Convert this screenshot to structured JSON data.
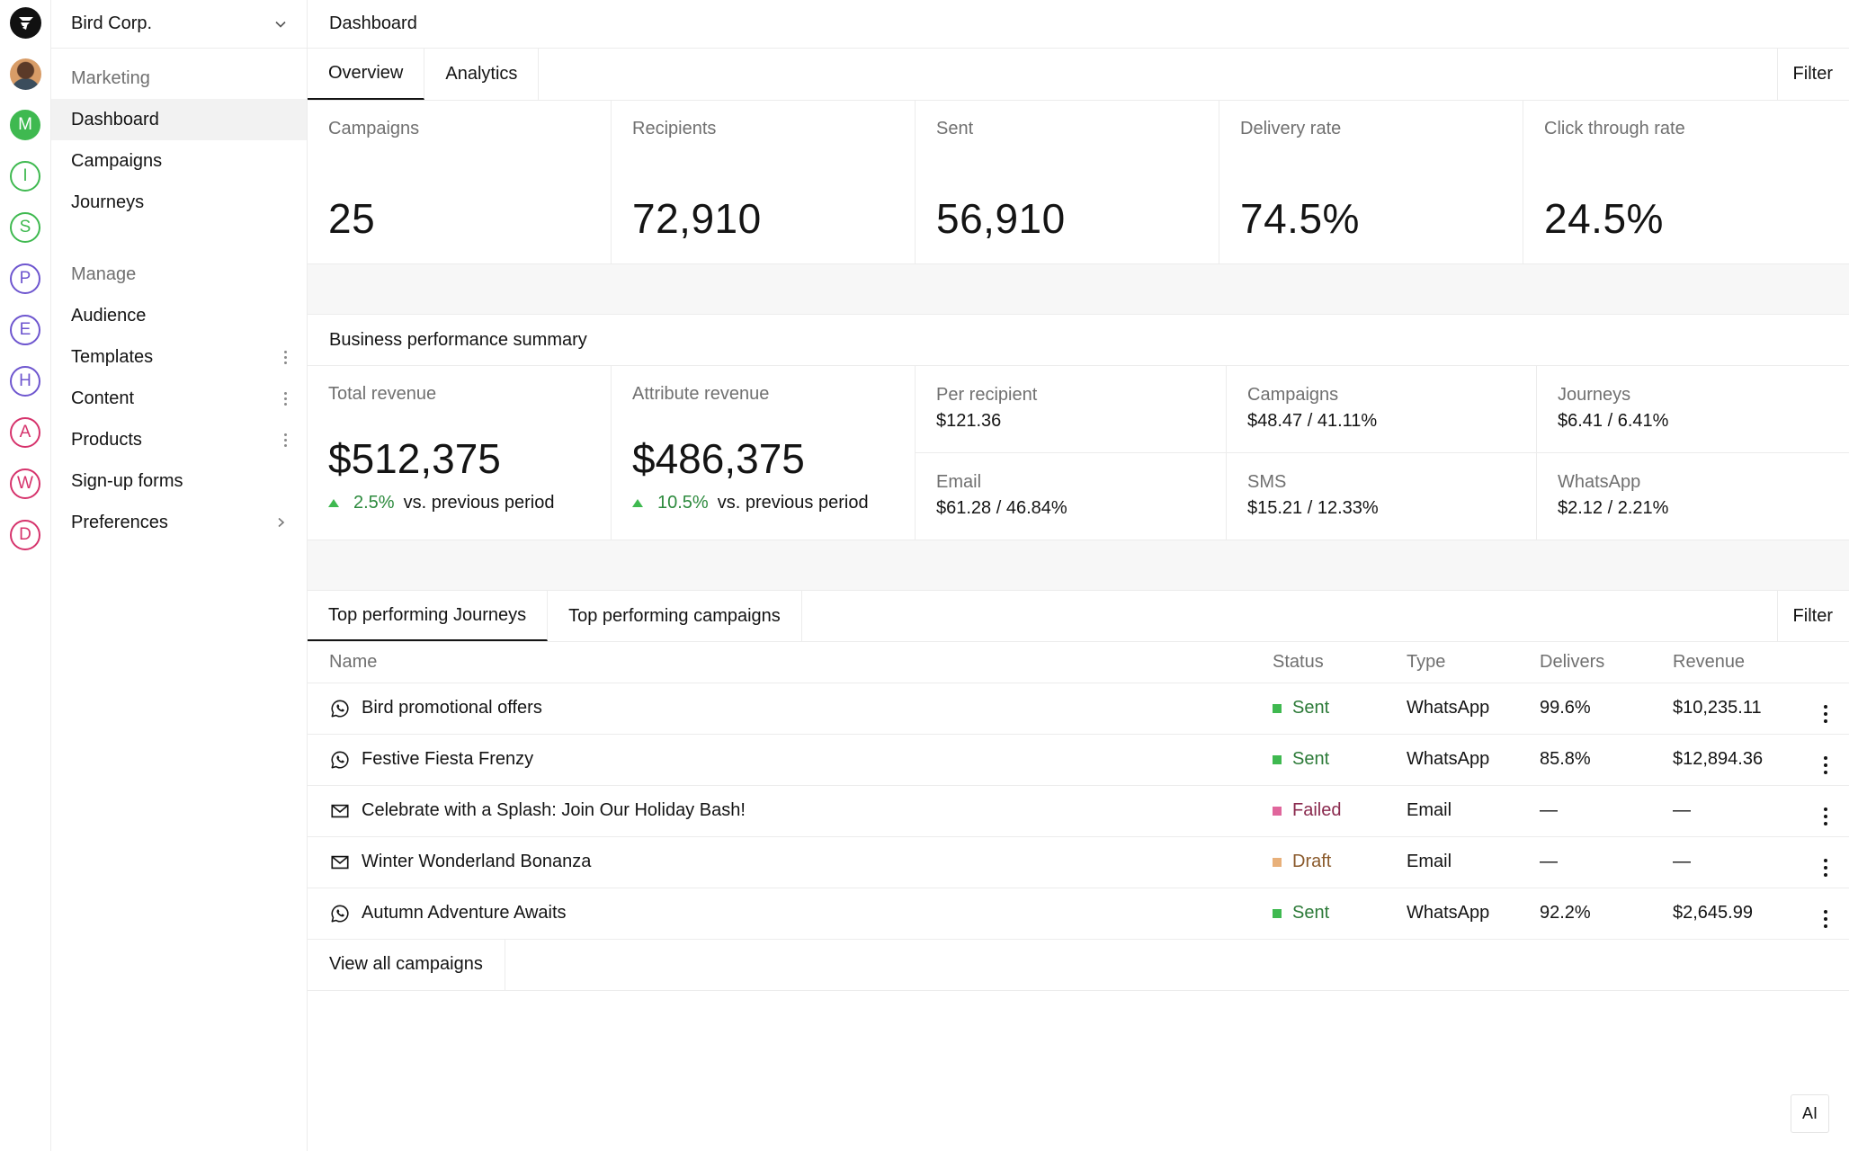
{
  "rail": {
    "workspaces": [
      {
        "letter": "M",
        "color": "#3fb950",
        "active": true
      },
      {
        "letter": "I",
        "color": "#3fb950",
        "active": false
      },
      {
        "letter": "S",
        "color": "#3fb950",
        "active": false
      },
      {
        "letter": "P",
        "color": "#6e56cf",
        "active": false
      },
      {
        "letter": "E",
        "color": "#6e56cf",
        "active": false
      },
      {
        "letter": "H",
        "color": "#6e56cf",
        "active": false
      },
      {
        "letter": "A",
        "color": "#d6336c",
        "active": false
      },
      {
        "letter": "W",
        "color": "#d6336c",
        "active": false
      },
      {
        "letter": "D",
        "color": "#d6336c",
        "active": false
      }
    ]
  },
  "sidebar": {
    "org_name": "Bird Corp.",
    "marketing_label": "Marketing",
    "marketing_items": [
      {
        "label": "Dashboard",
        "active": true
      },
      {
        "label": "Campaigns"
      },
      {
        "label": "Journeys"
      }
    ],
    "manage_label": "Manage",
    "manage_items": [
      {
        "label": "Audience"
      },
      {
        "label": "Templates",
        "menu": true
      },
      {
        "label": "Content",
        "menu": true
      },
      {
        "label": "Products",
        "menu": true
      },
      {
        "label": "Sign-up forms"
      },
      {
        "label": "Preferences",
        "chevron": true
      }
    ]
  },
  "header": {
    "title": "Dashboard"
  },
  "tabs": {
    "items": [
      "Overview",
      "Analytics"
    ],
    "active": "Overview",
    "filter_label": "Filter"
  },
  "kpis": [
    {
      "label": "Campaigns",
      "value": "25"
    },
    {
      "label": "Recipients",
      "value": "72,910"
    },
    {
      "label": "Sent",
      "value": "56,910"
    },
    {
      "label": "Delivery rate",
      "value": "74.5%"
    },
    {
      "label": "Click through rate",
      "value": "24.5%"
    }
  ],
  "business": {
    "title": "Business performance summary",
    "total": {
      "label": "Total revenue",
      "amount": "$512,375",
      "delta": "2.5%",
      "suffix": "vs. previous period"
    },
    "attribute": {
      "label": "Attribute revenue",
      "amount": "$486,375",
      "delta": "10.5%",
      "suffix": "vs. previous period"
    },
    "breakdown": [
      {
        "label": "Per recipient",
        "value": "$121.36"
      },
      {
        "label": "Campaigns",
        "value": "$48.47 / 41.11%"
      },
      {
        "label": "Journeys",
        "value": "$6.41 / 6.41%"
      },
      {
        "label": "Email",
        "value": "$61.28 / 46.84%"
      },
      {
        "label": "SMS",
        "value": "$15.21 / 12.33%"
      },
      {
        "label": "WhatsApp",
        "value": "$2.12 / 2.21%"
      }
    ]
  },
  "top": {
    "tabs": [
      "Top performing Journeys",
      "Top performing campaigns"
    ],
    "active": "Top performing Journeys",
    "filter_label": "Filter",
    "columns": [
      "Name",
      "Status",
      "Type",
      "Delivers",
      "Revenue"
    ],
    "rows": [
      {
        "icon": "whatsapp-icon",
        "name": "Bird promotional offers",
        "status": "Sent",
        "status_color": "#3fb950",
        "status_text_color": "#2c7a38",
        "type": "WhatsApp",
        "delivers": "99.6%",
        "revenue": "$10,235.11"
      },
      {
        "icon": "whatsapp-icon",
        "name": "Festive Fiesta Frenzy",
        "status": "Sent",
        "status_color": "#3fb950",
        "status_text_color": "#2c7a38",
        "type": "WhatsApp",
        "delivers": "85.8%",
        "revenue": "$12,894.36"
      },
      {
        "icon": "mail-icon",
        "name": "Celebrate with a Splash: Join Our Holiday Bash!",
        "status": "Failed",
        "status_color": "#e0669c",
        "status_text_color": "#8a2a4e",
        "type": "Email",
        "delivers": "—",
        "revenue": "—"
      },
      {
        "icon": "mail-icon",
        "name": "Winter Wonderland Bonanza",
        "status": "Draft",
        "status_color": "#e8b07a",
        "status_text_color": "#8a5a2c",
        "type": "Email",
        "delivers": "—",
        "revenue": "—"
      },
      {
        "icon": "whatsapp-icon",
        "name": "Autumn Adventure Awaits",
        "status": "Sent",
        "status_color": "#3fb950",
        "status_text_color": "#2c7a38",
        "type": "WhatsApp",
        "delivers": "92.2%",
        "revenue": "$2,645.99"
      }
    ],
    "view_all": "View all campaigns"
  },
  "ai_button": "AI"
}
